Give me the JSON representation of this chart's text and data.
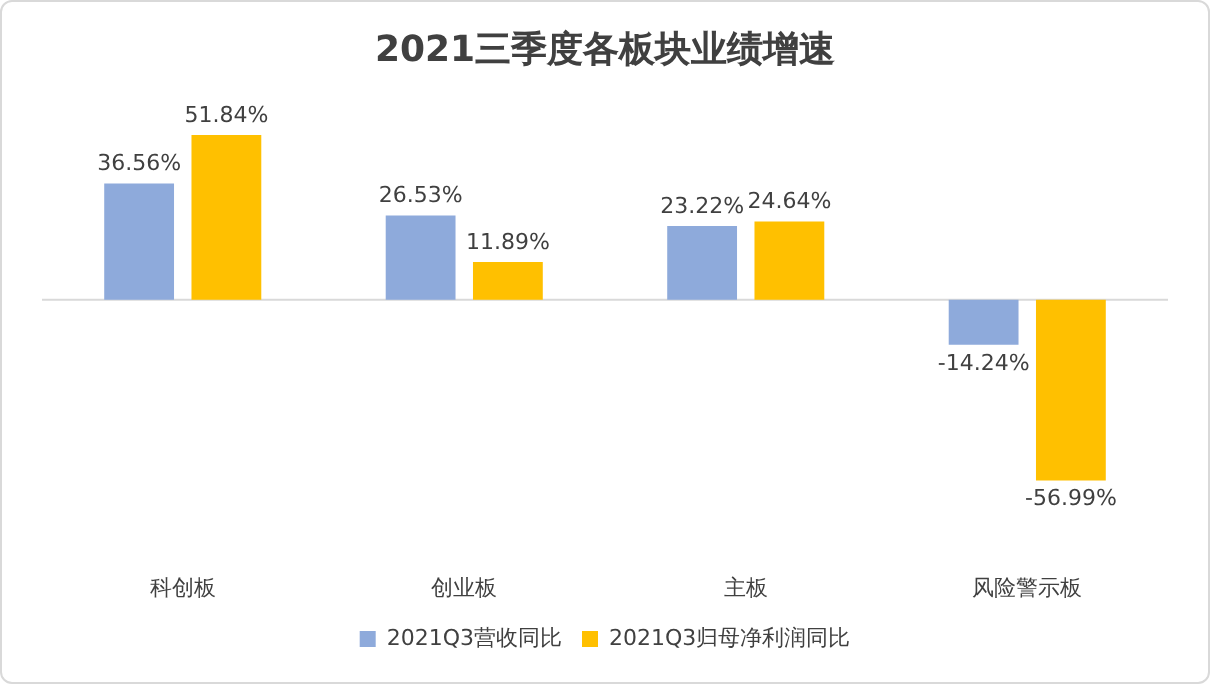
{
  "chart_data": {
    "type": "bar",
    "title": "2021三季度各板块业绩增速",
    "categories": [
      "科创板",
      "创业板",
      "主板",
      "风险警示板"
    ],
    "series": [
      {
        "name": "2021Q3营收同比",
        "color": "#8eaadb",
        "values": [
          36.56,
          26.53,
          23.22,
          -14.24
        ],
        "value_labels": [
          "36.56%",
          "26.53%",
          "23.22%",
          "-14.24%"
        ]
      },
      {
        "name": "2021Q3归母净利润同比",
        "color": "#ffc000",
        "values": [
          51.84,
          11.89,
          24.64,
          -56.99
        ],
        "value_labels": [
          "51.84%",
          "11.89%",
          "24.64%",
          "-56.99%"
        ]
      }
    ],
    "legend": "bottom",
    "grid": false
  }
}
